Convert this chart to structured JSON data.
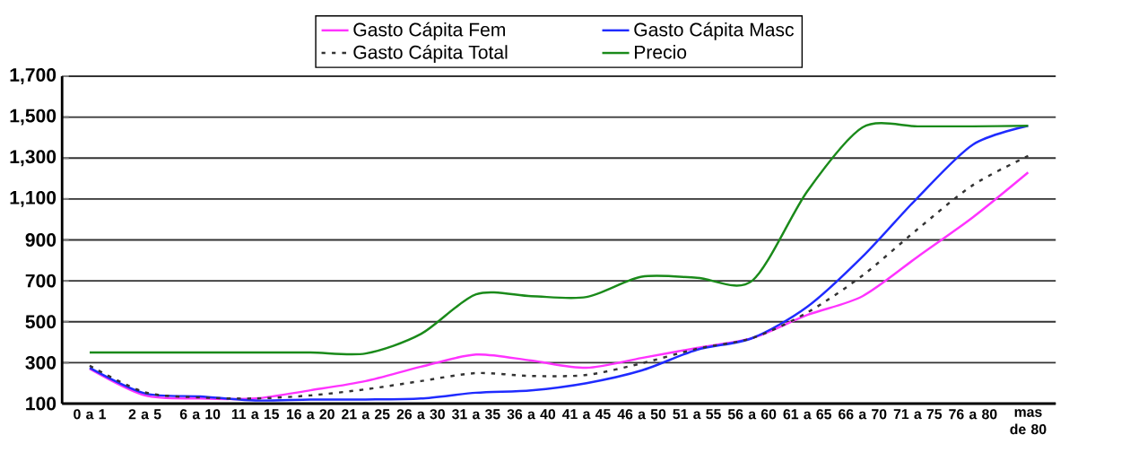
{
  "chart_data": {
    "type": "line",
    "categories": [
      "0 a 1",
      "2 a 5",
      "6 a 10",
      "11 a 15",
      "16 a 20",
      "21 a 25",
      "26 a 30",
      "31 a 35",
      "36 a 40",
      "41 a 45",
      "46 a 50",
      "51 a 55",
      "56 a 60",
      "61 a 65",
      "66 a 70",
      "71 a 75",
      "76 a 80",
      "mas de 80"
    ],
    "series": [
      {
        "name": "Gasto Cápita Fem",
        "color": "#ff33ff",
        "values": [
          270,
          140,
          125,
          125,
          165,
          210,
          280,
          340,
          310,
          275,
          323,
          372,
          420,
          533,
          625,
          818,
          1011,
          1230
        ]
      },
      {
        "name": "Gasto Cápita Masc",
        "color": "#1f2bff",
        "values": [
          275,
          150,
          135,
          115,
          120,
          120,
          125,
          153,
          165,
          200,
          262,
          363,
          420,
          573,
          818,
          1107,
          1366,
          1458
        ]
      },
      {
        "name": "Gasto Cápita Total",
        "color": "#333333",
        "line_style": "dotted",
        "values": [
          285,
          155,
          130,
          125,
          140,
          170,
          210,
          249,
          235,
          240,
          297,
          368,
          420,
          545,
          726,
          953,
          1168,
          1310
        ]
      },
      {
        "name": "Precio",
        "color": "#1a8a1a",
        "values": [
          350,
          350,
          350,
          350,
          350,
          345,
          440,
          634,
          625,
          621,
          720,
          715,
          700,
          1138,
          1450,
          1455,
          1455,
          1458
        ]
      }
    ],
    "ylim": [
      100,
      1700
    ],
    "yticks": [
      100,
      300,
      500,
      700,
      900,
      {
        "value": 1100,
        "label": "1,100"
      },
      {
        "value": 1300,
        "label": "1,300"
      },
      {
        "value": 1500,
        "label": "1,500"
      },
      {
        "value": 1700,
        "label": "1,700"
      }
    ],
    "grid": "y",
    "legend": "top",
    "line_style": "solid",
    "marker": "none"
  }
}
